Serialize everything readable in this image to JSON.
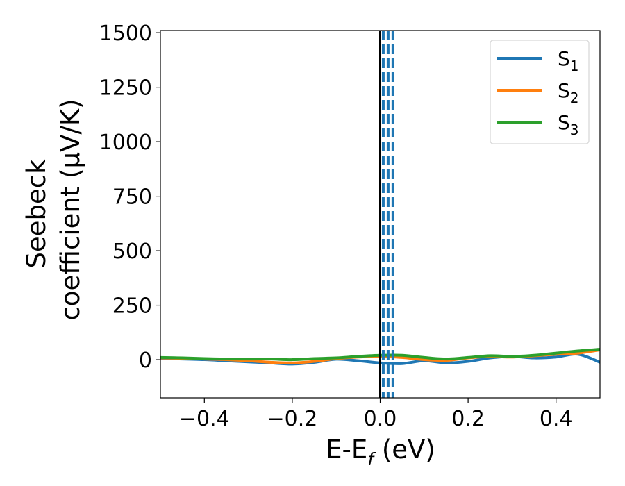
{
  "chart_data": {
    "type": "line",
    "xlabel": {
      "main": "E-E",
      "sub": "f",
      "unit": " (eV)"
    },
    "ylabel": {
      "line1": "Seebeck",
      "line2": "coefficient  (μV/K)"
    },
    "xlim": [
      -0.5,
      0.5
    ],
    "ylim": [
      -175,
      1510
    ],
    "xticks": [
      -0.4,
      -0.2,
      0.0,
      0.2,
      0.4
    ],
    "xtick_labels": [
      "−0.4",
      "−0.2",
      "0.0",
      "0.2",
      "0.4"
    ],
    "yticks": [
      0,
      250,
      500,
      750,
      1000,
      1250,
      1500
    ],
    "ytick_labels": [
      "0",
      "250",
      "500",
      "750",
      "1000",
      "1250",
      "1500"
    ],
    "grid": false,
    "legend_position": "top-right",
    "vertical_lines": [
      {
        "x": 0.0,
        "color": "#000000",
        "style": "solid"
      },
      {
        "x": 0.007,
        "color": "#1f77b4",
        "style": "dashed"
      },
      {
        "x": 0.018,
        "color": "#1f77b4",
        "style": "dashed"
      },
      {
        "x": 0.029,
        "color": "#1f77b4",
        "style": "dashed"
      }
    ],
    "x": [
      -0.5,
      -0.45,
      -0.4,
      -0.35,
      -0.3,
      -0.25,
      -0.2,
      -0.15,
      -0.1,
      -0.05,
      0.0,
      0.05,
      0.1,
      0.15,
      0.2,
      0.25,
      0.3,
      0.35,
      0.4,
      0.45,
      0.5
    ],
    "series": [
      {
        "name": "S",
        "sub": "1",
        "color": "#1f77b4",
        "values": [
          5,
          3,
          0,
          -5,
          -10,
          -15,
          -20,
          -12,
          2,
          -5,
          -15,
          -18,
          -5,
          -15,
          -8,
          8,
          15,
          8,
          12,
          25,
          -12
        ]
      },
      {
        "name": "S",
        "sub": "2",
        "color": "#ff7f0e",
        "values": [
          8,
          6,
          3,
          0,
          -5,
          -12,
          -15,
          -8,
          5,
          12,
          15,
          10,
          0,
          -3,
          8,
          15,
          12,
          18,
          25,
          30,
          45
        ]
      },
      {
        "name": "S",
        "sub": "3",
        "color": "#2ca02c",
        "values": [
          10,
          8,
          5,
          3,
          3,
          3,
          0,
          5,
          8,
          15,
          20,
          20,
          10,
          3,
          10,
          18,
          15,
          20,
          30,
          40,
          48
        ]
      }
    ]
  }
}
